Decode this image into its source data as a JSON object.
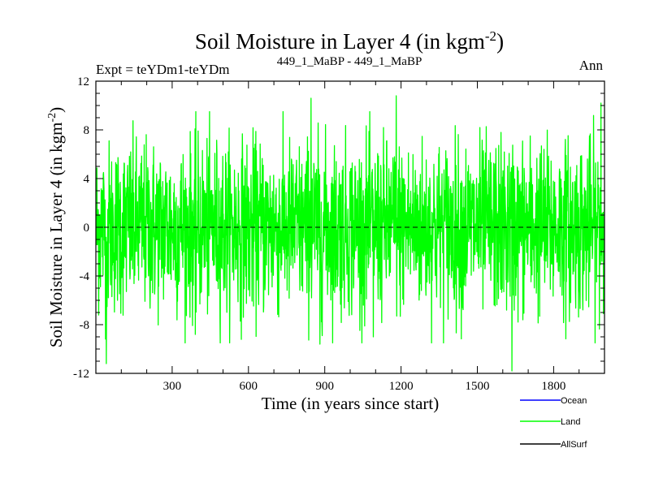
{
  "chart_data": {
    "type": "line",
    "title": "Soil Moisture in Layer 4 (in kgm",
    "title_sup": "-2",
    "title_close": ")",
    "subtitle_left": "Expt = teYDm1-teYDm",
    "subtitle_center": "449_1_MaBP - 449_1_MaBP",
    "subtitle_right": "Ann",
    "xlabel": "Time (in years since start)",
    "ylabel": "Soil Moisture in Layer 4 (in kgm",
    "ylabel_sup": "-2",
    "ylabel_close": ")",
    "xlim": [
      0,
      2000
    ],
    "ylim": [
      -12,
      12
    ],
    "xticks": [
      300,
      600,
      900,
      1200,
      1500,
      1800
    ],
    "yticks": [
      -12,
      -8,
      -4,
      0,
      4,
      8,
      12
    ],
    "zero_line": true,
    "legend": [
      {
        "name": "Ocean",
        "color": "#0000ff"
      },
      {
        "name": "Land",
        "color": "#00ff00"
      },
      {
        "name": "AllSurf",
        "color": "#000000"
      }
    ],
    "series": [
      {
        "name": "Land",
        "color": "#00ff00",
        "n_points": 2000,
        "mean": 0.0,
        "std": 3.5,
        "notable_points": [
          {
            "x": 40,
            "y": -11.2
          },
          {
            "x": 845,
            "y": 10.6
          },
          {
            "x": 1180,
            "y": 10.8
          },
          {
            "x": 1635,
            "y": -11.8
          },
          {
            "x": 1985,
            "y": 10.2
          },
          {
            "x": 390,
            "y": -8.8
          },
          {
            "x": 880,
            "y": -9.6
          },
          {
            "x": 1090,
            "y": -9.0
          }
        ]
      }
    ]
  }
}
